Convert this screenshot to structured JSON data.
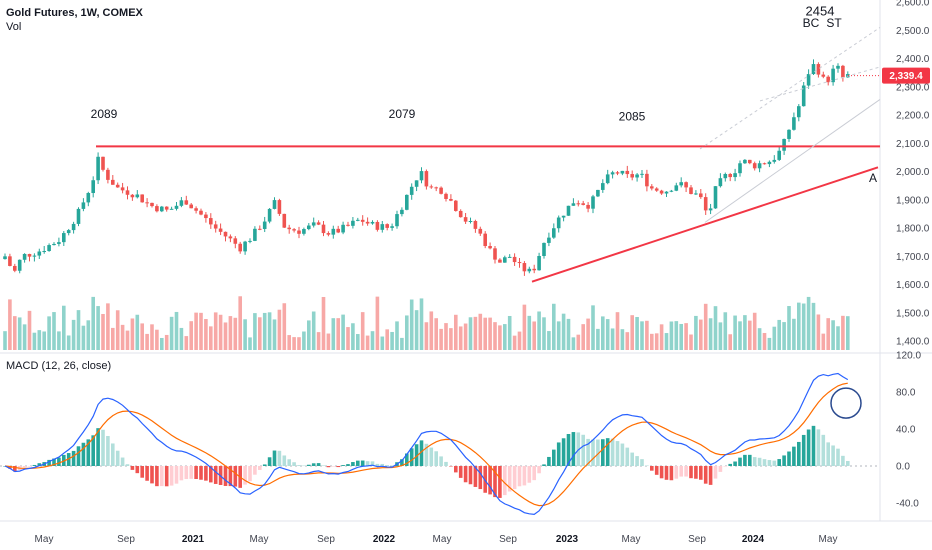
{
  "chart_data": {
    "type": "candlestick",
    "title": "Gold Futures, 1W, COMEX",
    "subtitle": "Vol",
    "macd_label": "MACD (12, 26, close)",
    "last_price": "2,339.4",
    "price_axis": {
      "ticks": [
        "2,600.0",
        "2,500.0",
        "2,400.0",
        "2,300.0",
        "2,200.0",
        "2,100.0",
        "2,000.0",
        "1,900.0",
        "1,800.0",
        "1,700.0",
        "1,600.0",
        "1,500.0",
        "1,400.0"
      ],
      "range": [
        1380,
        2610
      ]
    },
    "macd_axis": {
      "ticks": [
        "120.0",
        "80.0",
        "40.0",
        "0.0",
        "-40.0"
      ],
      "range": [
        -45,
        120
      ]
    },
    "x_axis": {
      "labels": [
        {
          "text": "May",
          "bold": false
        },
        {
          "text": "Sep",
          "bold": false
        },
        {
          "text": "2021",
          "bold": true
        },
        {
          "text": "May",
          "bold": false
        },
        {
          "text": "Sep",
          "bold": false
        },
        {
          "text": "2022",
          "bold": true
        },
        {
          "text": "May",
          "bold": false
        },
        {
          "text": "Sep",
          "bold": false
        },
        {
          "text": "2023",
          "bold": true
        },
        {
          "text": "May",
          "bold": false
        },
        {
          "text": "Sep",
          "bold": false
        },
        {
          "text": "2024",
          "bold": true
        },
        {
          "text": "May",
          "bold": false
        }
      ]
    },
    "annotations": [
      {
        "text": "2089",
        "price": 2190
      },
      {
        "text": "2079",
        "price": 2190
      },
      {
        "text": "2085",
        "price": 2180
      },
      {
        "text": "2454",
        "price": 2552
      },
      {
        "text": "BC",
        "price": 2512
      },
      {
        "text": "ST",
        "price": 2512
      },
      {
        "text": "A",
        "price": 1962
      }
    ],
    "resistance_price": 2089,
    "trendline": {
      "start_price": 1610,
      "end_price": 2015
    },
    "colors": {
      "up": "#26a69a",
      "down": "#ef5350",
      "resistance": "#f23645",
      "macd_line": "#2962ff",
      "signal_line": "#ff6d00",
      "vol_up": "#8fd3cb",
      "vol_down": "#f7a8a6",
      "circle": "#2a4a8f"
    }
  }
}
